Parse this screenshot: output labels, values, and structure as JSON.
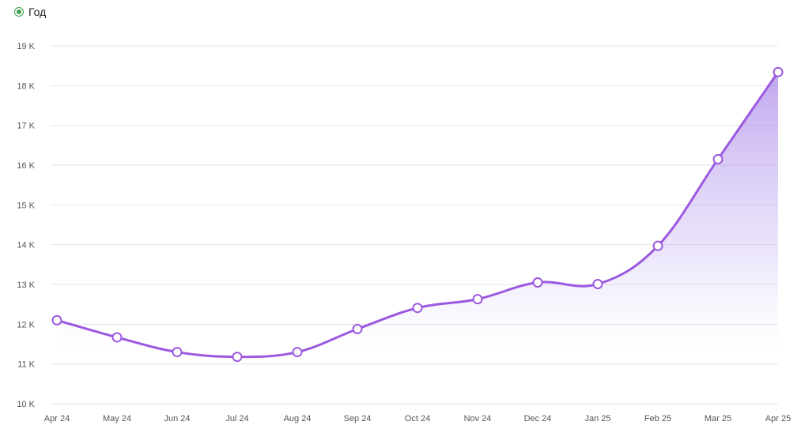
{
  "legend": {
    "label": "Год",
    "color": "#3fa34d"
  },
  "chart_data": {
    "type": "area",
    "x": [
      "Apr 24",
      "May 24",
      "Jun 24",
      "Jul 24",
      "Aug 24",
      "Sep 24",
      "Oct 24",
      "Nov 24",
      "Dec 24",
      "Jan 25",
      "Feb 25",
      "Mar 25",
      "Apr 25"
    ],
    "series": [
      {
        "name": "Год",
        "values": [
          12100,
          11670,
          11300,
          11180,
          11300,
          11880,
          12410,
          12630,
          13050,
          13010,
          13970,
          16150,
          18340
        ],
        "color": "#9b59e0"
      }
    ],
    "y_ticks": [
      "10 K",
      "11 K",
      "12 K",
      "13 K",
      "14 K",
      "15 K",
      "16 K",
      "17 K",
      "18 K",
      "19 K"
    ],
    "ylim": [
      10000,
      19000
    ],
    "grid": true,
    "legend_position": "top-left"
  }
}
